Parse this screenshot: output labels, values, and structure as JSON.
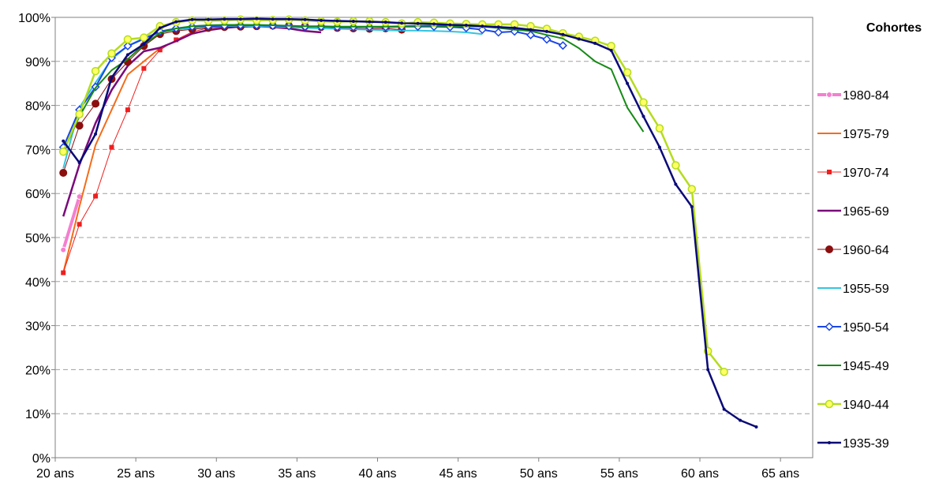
{
  "chart_data": {
    "type": "line",
    "title": "",
    "xlabel": "",
    "ylabel": "",
    "xlim": [
      20,
      67
    ],
    "ylim": [
      0,
      100
    ],
    "x_ticks": [
      {
        "value": 20,
        "label": "20 ans"
      },
      {
        "value": 25,
        "label": "25 ans"
      },
      {
        "value": 30,
        "label": "30 ans"
      },
      {
        "value": 35,
        "label": "35 ans"
      },
      {
        "value": 40,
        "label": "40 ans"
      },
      {
        "value": 45,
        "label": "45 ans"
      },
      {
        "value": 50,
        "label": "50 ans"
      },
      {
        "value": 55,
        "label": "55 ans"
      },
      {
        "value": 60,
        "label": "60 ans"
      },
      {
        "value": 65,
        "label": "65 ans"
      }
    ],
    "y_ticks": [
      {
        "value": 0,
        "label": "0%"
      },
      {
        "value": 10,
        "label": "10%"
      },
      {
        "value": 20,
        "label": "20%"
      },
      {
        "value": 30,
        "label": "30%"
      },
      {
        "value": 40,
        "label": "40%"
      },
      {
        "value": 50,
        "label": "50%"
      },
      {
        "value": 60,
        "label": "60%"
      },
      {
        "value": 70,
        "label": "70%"
      },
      {
        "value": 80,
        "label": "80%"
      },
      {
        "value": 90,
        "label": "90%"
      },
      {
        "value": 100,
        "label": "100%"
      }
    ],
    "grid": "horizontal-dashed",
    "legend": {
      "title": "Cohortes",
      "placement": "right"
    },
    "series": [
      {
        "name": "1980-84",
        "color": "#f47fd0",
        "marker": "circle-small",
        "width": 4,
        "x": [
          20.5,
          21.5
        ],
        "y": [
          47.2,
          59.3
        ]
      },
      {
        "name": "1975-79",
        "color": "#f36c1a",
        "marker": "none",
        "width": 2,
        "x": [
          20.5,
          21.5,
          22.5,
          23.5,
          24.5,
          25.5,
          26.5
        ],
        "y": [
          42.0,
          57.0,
          71.0,
          79.0,
          87.0,
          90.0,
          93.0
        ]
      },
      {
        "name": "1970-74",
        "color": "#ef1f1f",
        "marker": "square",
        "width": 1,
        "x": [
          20.5,
          21.5,
          22.5,
          23.5,
          24.5,
          25.5,
          26.5,
          27.5,
          28.5,
          29.5,
          30.5,
          31.5
        ],
        "y": [
          42.0,
          53.0,
          59.4,
          70.5,
          79.0,
          88.4,
          92.6,
          94.9,
          96.7,
          97.6,
          98.2,
          98.5
        ]
      },
      {
        "name": "1965-69",
        "color": "#7a0a7a",
        "marker": "none",
        "width": 2.5,
        "x": [
          20.5,
          21.5,
          22.5,
          23.5,
          24.5,
          25.5,
          26.5,
          27.5,
          28.5,
          29.5,
          30.5,
          31.5,
          32.5,
          33.5,
          34.5,
          35.5,
          36.5
        ],
        "y": [
          54.8,
          66.5,
          76.0,
          83.5,
          89.0,
          92.3,
          93.1,
          94.6,
          96.3,
          97.1,
          97.6,
          97.9,
          98.0,
          97.8,
          97.5,
          96.9,
          96.6
        ]
      },
      {
        "name": "1960-64",
        "color": "#8b0f0f",
        "marker": "circle",
        "width": 1,
        "x": [
          20.5,
          21.5,
          22.5,
          23.5,
          24.5,
          25.5,
          26.5,
          27.5,
          28.5,
          29.5,
          30.5,
          31.5,
          32.5,
          33.5,
          34.5,
          35.5,
          36.5,
          37.5,
          38.5,
          39.5,
          40.5,
          41.5
        ],
        "y": [
          64.7,
          75.4,
          80.4,
          86.0,
          89.9,
          93.5,
          96.2,
          96.9,
          97.3,
          97.6,
          97.8,
          97.9,
          98.0,
          98.1,
          98.1,
          98.0,
          97.8,
          97.6,
          97.5,
          97.4,
          97.5,
          97.2
        ]
      },
      {
        "name": "1955-59",
        "color": "#33c5e0",
        "marker": "none",
        "width": 2,
        "x": [
          20.5,
          21.5,
          22.5,
          23.5,
          24.5,
          25.5,
          26.5,
          27.5,
          28.5,
          29.5,
          30.5,
          31.5,
          32.5,
          33.5,
          34.5,
          35.5,
          36.5,
          37.5,
          38.5,
          39.5,
          40.5,
          41.5,
          42.5,
          43.5,
          44.5,
          45.5,
          46.5
        ],
        "y": [
          65.7,
          79.5,
          85.2,
          90.5,
          93.5,
          95.3,
          96.6,
          97.2,
          97.6,
          97.9,
          98.0,
          98.1,
          98.0,
          97.9,
          97.8,
          97.6,
          97.5,
          97.4,
          97.3,
          97.2,
          97.1,
          97.0,
          97.0,
          96.9,
          96.8,
          96.6,
          96.2
        ]
      },
      {
        "name": "1950-54",
        "color": "#1a46e8",
        "marker": "diamond",
        "width": 2,
        "x": [
          20.5,
          21.5,
          22.5,
          23.5,
          24.5,
          25.5,
          26.5,
          27.5,
          28.5,
          29.5,
          30.5,
          31.5,
          32.5,
          33.5,
          34.5,
          35.5,
          36.5,
          37.5,
          38.5,
          39.5,
          40.5,
          41.5,
          42.5,
          43.5,
          44.5,
          45.5,
          46.5,
          47.5,
          48.5,
          49.5,
          50.5,
          51.5
        ],
        "y": [
          70.5,
          79.0,
          84.2,
          90.8,
          93.5,
          95.1,
          96.8,
          97.5,
          97.9,
          98.0,
          98.1,
          98.2,
          98.2,
          98.1,
          98.0,
          97.9,
          97.9,
          97.8,
          97.8,
          97.8,
          97.8,
          97.9,
          97.9,
          97.9,
          97.8,
          97.6,
          97.2,
          96.6,
          96.8,
          96.0,
          95.0,
          93.6
        ]
      },
      {
        "name": "1945-49",
        "color": "#168a16",
        "marker": "none",
        "width": 2,
        "x": [
          20.5,
          21.5,
          22.5,
          23.5,
          24.5,
          25.5,
          26.5,
          27.5,
          28.5,
          29.5,
          30.5,
          31.5,
          32.5,
          33.5,
          34.5,
          35.5,
          36.5,
          37.5,
          38.5,
          39.5,
          40.5,
          41.5,
          42.5,
          43.5,
          44.5,
          45.5,
          46.5,
          47.5,
          48.5,
          49.5,
          50.5,
          51.5,
          52.5,
          53.5,
          54.5,
          55.5,
          56.5
        ],
        "y": [
          69.5,
          77.5,
          84.0,
          88.0,
          90.5,
          93.8,
          96.5,
          97.5,
          98.0,
          98.2,
          98.3,
          98.3,
          98.3,
          98.2,
          98.1,
          98.0,
          98.0,
          97.9,
          97.9,
          97.9,
          97.9,
          98.0,
          98.1,
          98.1,
          98.0,
          98.0,
          97.9,
          97.6,
          97.2,
          96.9,
          96.0,
          95.2,
          93.0,
          90.0,
          88.2,
          79.5,
          74.0
        ]
      },
      {
        "name": "1940-44",
        "color": "#b5dc1e",
        "marker": "circle-open",
        "width": 2.5,
        "x": [
          20.5,
          21.5,
          22.5,
          23.5,
          24.5,
          25.5,
          26.5,
          27.5,
          28.5,
          29.5,
          30.5,
          31.5,
          32.5,
          33.5,
          34.5,
          35.5,
          36.5,
          37.5,
          38.5,
          39.5,
          40.5,
          41.5,
          42.5,
          43.5,
          44.5,
          45.5,
          46.5,
          47.5,
          48.5,
          49.5,
          50.5,
          51.5,
          52.5,
          53.5,
          54.5,
          55.5,
          56.5,
          57.5,
          58.5,
          59.5,
          60.5,
          61.5
        ],
        "y": [
          69.5,
          78.0,
          87.8,
          91.8,
          95.0,
          95.4,
          98.0,
          98.9,
          99.3,
          99.2,
          99.3,
          99.5,
          99.3,
          99.4,
          99.5,
          99.3,
          99.1,
          99.0,
          99.1,
          99.1,
          98.9,
          98.6,
          98.9,
          98.8,
          98.6,
          98.5,
          98.4,
          98.4,
          98.4,
          98.0,
          97.4,
          96.4,
          95.6,
          94.7,
          93.5,
          87.5,
          80.7,
          74.8,
          66.4,
          61.0,
          24.2,
          19.5
        ]
      },
      {
        "name": "1935-39",
        "color": "#0a0a78",
        "marker": "dot",
        "width": 2.5,
        "x": [
          20.5,
          21.5,
          22.5,
          23.5,
          24.5,
          25.5,
          26.5,
          27.5,
          28.5,
          29.5,
          30.5,
          31.5,
          32.5,
          33.5,
          34.5,
          35.5,
          36.5,
          37.5,
          38.5,
          39.5,
          40.5,
          41.5,
          42.5,
          43.5,
          44.5,
          45.5,
          46.5,
          47.5,
          48.5,
          49.5,
          50.5,
          51.5,
          52.5,
          53.5,
          54.5,
          55.5,
          56.5,
          57.5,
          58.5,
          59.5,
          60.5,
          61.5,
          62.5,
          63.5
        ],
        "y": [
          71.9,
          67.0,
          73.5,
          86.3,
          91.5,
          93.9,
          97.6,
          99.0,
          99.5,
          99.5,
          99.6,
          99.6,
          99.7,
          99.6,
          99.6,
          99.5,
          99.3,
          99.2,
          99.1,
          99.0,
          98.9,
          98.7,
          98.6,
          98.5,
          98.3,
          98.2,
          98.0,
          97.8,
          97.6,
          97.2,
          96.8,
          96.1,
          95.1,
          94.1,
          92.5,
          85.0,
          77.5,
          70.5,
          62.1,
          57.0,
          20.0,
          11.0,
          8.5,
          7.0
        ]
      }
    ]
  }
}
